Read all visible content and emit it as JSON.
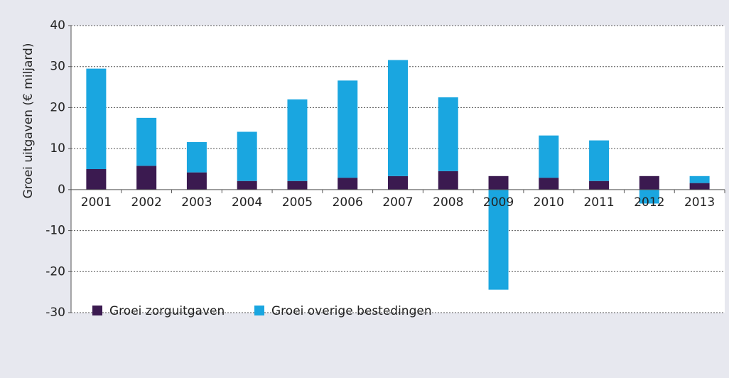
{
  "chart_data": {
    "type": "stacked_bar",
    "y_label": "Groei uitgaven (€ miljard)",
    "categories": [
      "2001",
      "2002",
      "2003",
      "2004",
      "2005",
      "2006",
      "2007",
      "2008",
      "2009",
      "2010",
      "2011",
      "2012",
      "2013"
    ],
    "series": [
      {
        "name": "Groei zorguitgaven",
        "color": "#3b1a50",
        "values": [
          5.0,
          5.8,
          4.2,
          2.1,
          2.1,
          2.9,
          3.3,
          4.5,
          3.3,
          2.9,
          2.1,
          3.3,
          1.6
        ]
      },
      {
        "name": "Groei overige bestedingen",
        "color": "#1aa6e0",
        "values": [
          24.5,
          11.7,
          7.4,
          12.0,
          19.9,
          23.7,
          28.3,
          18.0,
          -24.4,
          10.3,
          9.9,
          -3.4,
          1.7
        ]
      }
    ],
    "ylim": [
      -30,
      40
    ],
    "yticks": [
      -30,
      -20,
      -10,
      0,
      10,
      20,
      30,
      40
    ],
    "grid": true
  }
}
